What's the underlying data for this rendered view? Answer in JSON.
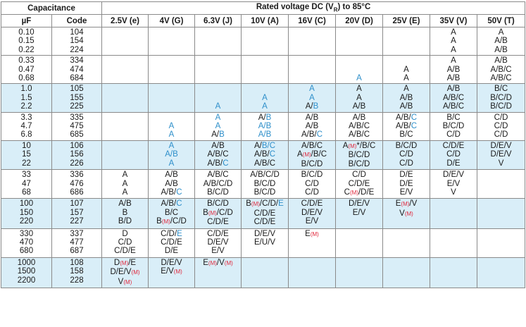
{
  "header": {
    "capacitance": "Capacitance",
    "rated_voltage": "Rated voltage DC (V",
    "rated_voltage_sub": "R",
    "rated_voltage_tail": ") to 85°C",
    "unit": "µF",
    "code": "Code",
    "voltages": [
      "2.5V (e)",
      "4V (G)",
      "6.3V (J)",
      "10V (A)",
      "16V (C)",
      "20V (D)",
      "25V (E)",
      "35V (V)",
      "50V (T)"
    ]
  },
  "colors": {
    "blue_text": "#2e8fca",
    "red_text": "#e0263a",
    "row_blue": "#d9eef8",
    "border": "#8a8a8a"
  },
  "groups": [
    {
      "shade": "white",
      "caps": [
        "0.10",
        "0.15",
        "0.22"
      ],
      "codes": [
        "104",
        "154",
        "224"
      ],
      "cells": [
        [],
        [],
        [],
        [],
        [],
        [],
        [],
        [
          [
            {
              "t": "A"
            }
          ],
          [
            {
              "t": "A"
            }
          ],
          [
            {
              "t": "A"
            }
          ]
        ],
        [
          [
            {
              "t": "A"
            }
          ],
          [
            {
              "t": "A/B"
            }
          ],
          [
            {
              "t": "A/B"
            }
          ]
        ]
      ]
    },
    {
      "shade": "white",
      "caps": [
        "0.33",
        "0.47",
        "0.68"
      ],
      "codes": [
        "334",
        "474",
        "684"
      ],
      "cells": [
        [],
        [],
        [],
        [],
        [],
        [
          [],
          [],
          [
            {
              "t": "A",
              "c": "b"
            }
          ]
        ],
        [
          [],
          [
            {
              "t": "A"
            }
          ],
          [
            {
              "t": "A"
            }
          ]
        ],
        [
          [
            {
              "t": "A"
            }
          ],
          [
            {
              "t": "A/B"
            }
          ],
          [
            {
              "t": "A/B"
            }
          ]
        ],
        [
          [
            {
              "t": "A/B"
            }
          ],
          [
            {
              "t": "A/B/C"
            }
          ],
          [
            {
              "t": "A/B/C"
            }
          ]
        ]
      ]
    },
    {
      "shade": "blue",
      "caps": [
        "1.0",
        "1.5",
        "2.2"
      ],
      "codes": [
        "105",
        "155",
        "225"
      ],
      "cells": [
        [],
        [],
        [
          [],
          [],
          [
            {
              "t": "A",
              "c": "b"
            }
          ]
        ],
        [
          [],
          [
            {
              "t": "A",
              "c": "b"
            }
          ],
          [
            {
              "t": "A",
              "c": "b"
            }
          ]
        ],
        [
          [
            {
              "t": "A",
              "c": "b"
            }
          ],
          [
            {
              "t": "A",
              "c": "b"
            }
          ],
          [
            {
              "t": "A/"
            },
            {
              "t": "B",
              "c": "b"
            }
          ]
        ],
        [
          [
            {
              "t": "A"
            }
          ],
          [
            {
              "t": "A"
            }
          ],
          [
            {
              "t": "A/B"
            }
          ]
        ],
        [
          [
            {
              "t": "A"
            }
          ],
          [
            {
              "t": "A/B"
            }
          ],
          [
            {
              "t": "A/B"
            }
          ]
        ],
        [
          [
            {
              "t": "A/B"
            }
          ],
          [
            {
              "t": "A/B/C"
            }
          ],
          [
            {
              "t": "A/B/C"
            }
          ]
        ],
        [
          [
            {
              "t": "B/C"
            }
          ],
          [
            {
              "t": "B/C/D"
            }
          ],
          [
            {
              "t": "B/C/D"
            }
          ]
        ]
      ]
    },
    {
      "shade": "white",
      "caps": [
        "3.3",
        "4.7",
        "6.8"
      ],
      "codes": [
        "335",
        "475",
        "685"
      ],
      "cells": [
        [],
        [
          [],
          [
            {
              "t": "A",
              "c": "b"
            }
          ],
          [
            {
              "t": "A",
              "c": "b"
            }
          ]
        ],
        [
          [
            {
              "t": "A",
              "c": "b"
            }
          ],
          [
            {
              "t": "A",
              "c": "b"
            }
          ],
          [
            {
              "t": "A/"
            },
            {
              "t": "B",
              "c": "b"
            }
          ]
        ],
        [
          [
            {
              "t": "A/"
            },
            {
              "t": "B",
              "c": "b"
            }
          ],
          [
            {
              "t": "A/B",
              "c": "b"
            }
          ],
          [
            {
              "t": "A/B",
              "c": "b"
            }
          ]
        ],
        [
          [
            {
              "t": "A/B"
            }
          ],
          [
            {
              "t": "A/B"
            }
          ],
          [
            {
              "t": "A/B/"
            },
            {
              "t": "C",
              "c": "b"
            }
          ]
        ],
        [
          [
            {
              "t": "A/B"
            }
          ],
          [
            {
              "t": "A/B/C"
            }
          ],
          [
            {
              "t": "A/B/C"
            }
          ]
        ],
        [
          [
            {
              "t": "A/B/"
            },
            {
              "t": "C",
              "c": "b"
            }
          ],
          [
            {
              "t": "A/B/"
            },
            {
              "t": "C",
              "c": "b"
            }
          ],
          [
            {
              "t": "B/C"
            }
          ]
        ],
        [
          [
            {
              "t": "B/C"
            }
          ],
          [
            {
              "t": "B/C/D"
            }
          ],
          [
            {
              "t": "C/D"
            }
          ]
        ],
        [
          [
            {
              "t": "C/D"
            }
          ],
          [
            {
              "t": "C/D"
            }
          ],
          [
            {
              "t": "C/D"
            }
          ]
        ]
      ]
    },
    {
      "shade": "blue",
      "caps": [
        "10",
        "15",
        "22"
      ],
      "codes": [
        "106",
        "156",
        "226"
      ],
      "cells": [
        [],
        [
          [
            {
              "t": "A",
              "c": "b"
            }
          ],
          [
            {
              "t": "A/B",
              "c": "b"
            }
          ],
          [
            {
              "t": "A",
              "c": "b"
            }
          ]
        ],
        [
          [
            {
              "t": "A/B"
            }
          ],
          [
            {
              "t": "A/B/C"
            }
          ],
          [
            {
              "t": "A/B/"
            },
            {
              "t": "C",
              "c": "b"
            }
          ]
        ],
        [
          [
            {
              "t": "A/"
            },
            {
              "t": "B/C",
              "c": "b"
            }
          ],
          [
            {
              "t": "A/B/"
            },
            {
              "t": "C",
              "c": "b"
            }
          ],
          [
            {
              "t": "A/B/C"
            }
          ]
        ],
        [
          [
            {
              "t": "A/B/C"
            }
          ],
          [
            {
              "t": "A"
            },
            {
              "t": "(M)",
              "c": "r"
            },
            {
              "t": "/B/C"
            }
          ],
          [
            {
              "t": "B/C/D"
            }
          ]
        ],
        [
          [
            {
              "t": "A"
            },
            {
              "t": "(M)",
              "c": "r"
            },
            {
              "t": "*/B/C"
            }
          ],
          [
            {
              "t": "B/C/D"
            }
          ],
          [
            {
              "t": "B/C/D"
            }
          ]
        ],
        [
          [
            {
              "t": "B/C/D"
            }
          ],
          [
            {
              "t": "C/D"
            }
          ],
          [
            {
              "t": "C/D"
            }
          ]
        ],
        [
          [
            {
              "t": "C/D/E"
            }
          ],
          [
            {
              "t": "C/D"
            }
          ],
          [
            {
              "t": "D/E"
            }
          ]
        ],
        [
          [
            {
              "t": "D/E/V"
            }
          ],
          [
            {
              "t": "D/E/V"
            }
          ],
          [
            {
              "t": "V"
            }
          ]
        ]
      ]
    },
    {
      "shade": "white",
      "caps": [
        "33",
        "47",
        "68"
      ],
      "codes": [
        "336",
        "476",
        "686"
      ],
      "cells": [
        [
          [
            {
              "t": "A"
            }
          ],
          [
            {
              "t": "A"
            }
          ],
          [
            {
              "t": "A"
            }
          ]
        ],
        [
          [
            {
              "t": "A/B"
            }
          ],
          [
            {
              "t": "A/B"
            }
          ],
          [
            {
              "t": "A/B/"
            },
            {
              "t": "C",
              "c": "b"
            }
          ]
        ],
        [
          [
            {
              "t": "A/B/C"
            }
          ],
          [
            {
              "t": "A/B/C/D"
            }
          ],
          [
            {
              "t": "B/C/D"
            }
          ]
        ],
        [
          [
            {
              "t": "A/B/C/D"
            }
          ],
          [
            {
              "t": "B/C/D"
            }
          ],
          [
            {
              "t": "B/C/D"
            }
          ]
        ],
        [
          [
            {
              "t": "B/C/D"
            }
          ],
          [
            {
              "t": "C/D"
            }
          ],
          [
            {
              "t": "C/D"
            }
          ]
        ],
        [
          [
            {
              "t": "C/D"
            }
          ],
          [
            {
              "t": "C/D/E"
            }
          ],
          [
            {
              "t": "C"
            },
            {
              "t": "(M)",
              "c": "r"
            },
            {
              "t": "/D/E"
            }
          ]
        ],
        [
          [
            {
              "t": "D/E"
            }
          ],
          [
            {
              "t": "D/E"
            }
          ],
          [
            {
              "t": "E/V"
            }
          ]
        ],
        [
          [
            {
              "t": "D/E/V"
            }
          ],
          [
            {
              "t": "E/V"
            }
          ],
          [
            {
              "t": "V"
            }
          ]
        ],
        []
      ]
    },
    {
      "shade": "blue",
      "caps": [
        "100",
        "150",
        "220"
      ],
      "codes": [
        "107",
        "157",
        "227"
      ],
      "cells": [
        [
          [
            {
              "t": "A/B"
            }
          ],
          [
            {
              "t": "B"
            }
          ],
          [
            {
              "t": "B/D"
            }
          ]
        ],
        [
          [
            {
              "t": "A/B/"
            },
            {
              "t": "C",
              "c": "b"
            }
          ],
          [
            {
              "t": "B/C"
            }
          ],
          [
            {
              "t": "B"
            },
            {
              "t": "(M)",
              "c": "r"
            },
            {
              "t": "/C/D"
            }
          ]
        ],
        [
          [
            {
              "t": "B/C/D"
            }
          ],
          [
            {
              "t": "B"
            },
            {
              "t": "(M)",
              "c": "r"
            },
            {
              "t": "/C/D"
            }
          ],
          [
            {
              "t": "C/D/E"
            }
          ]
        ],
        [
          [
            {
              "t": "B"
            },
            {
              "t": "(M)",
              "c": "r"
            },
            {
              "t": "/C/D/"
            },
            {
              "t": "E",
              "c": "b"
            }
          ],
          [
            {
              "t": "C/D/E"
            }
          ],
          [
            {
              "t": "C/D/E"
            }
          ]
        ],
        [
          [
            {
              "t": "C/D/E"
            }
          ],
          [
            {
              "t": "D/E/V"
            }
          ],
          [
            {
              "t": "E/V"
            }
          ]
        ],
        [
          [
            {
              "t": "D/E/V"
            }
          ],
          [
            {
              "t": "E/V"
            }
          ],
          []
        ],
        [
          [
            {
              "t": "E"
            },
            {
              "t": "(M)",
              "c": "r"
            },
            {
              "t": "/V"
            }
          ],
          [
            {
              "t": "V"
            },
            {
              "t": "(M)",
              "c": "r"
            }
          ],
          []
        ],
        [],
        []
      ]
    },
    {
      "shade": "white",
      "caps": [
        "330",
        "470",
        "680"
      ],
      "codes": [
        "337",
        "477",
        "687"
      ],
      "cells": [
        [
          [
            {
              "t": "D"
            }
          ],
          [
            {
              "t": "C/D"
            }
          ],
          [
            {
              "t": "C/D/E"
            }
          ]
        ],
        [
          [
            {
              "t": "C/D/"
            },
            {
              "t": "E",
              "c": "b"
            }
          ],
          [
            {
              "t": "C/D/E"
            }
          ],
          [
            {
              "t": "D/E"
            }
          ]
        ],
        [
          [
            {
              "t": "C/D/E"
            }
          ],
          [
            {
              "t": "D/E/V"
            }
          ],
          [
            {
              "t": "E/V"
            }
          ]
        ],
        [
          [
            {
              "t": "D/E/V"
            }
          ],
          [
            {
              "t": "E/U/V"
            }
          ],
          []
        ],
        [
          [
            {
              "t": "E"
            },
            {
              "t": "(M)",
              "c": "r"
            }
          ],
          [],
          []
        ],
        [],
        [],
        [],
        []
      ]
    },
    {
      "shade": "blue",
      "caps": [
        "1000",
        "1500",
        "2200"
      ],
      "codes": [
        "108",
        "158",
        "228"
      ],
      "cells": [
        [
          [
            {
              "t": "D"
            },
            {
              "t": "(M)",
              "c": "r"
            },
            {
              "t": "/E"
            }
          ],
          [
            {
              "t": "D/E/V"
            },
            {
              "t": "(M)",
              "c": "r"
            }
          ],
          [
            {
              "t": "V"
            },
            {
              "t": "(M)",
              "c": "r"
            }
          ]
        ],
        [
          [
            {
              "t": "D/E/V"
            }
          ],
          [
            {
              "t": "E/V"
            },
            {
              "t": "(M)",
              "c": "r"
            }
          ],
          []
        ],
        [
          [
            {
              "t": "E"
            },
            {
              "t": "(M)",
              "c": "r"
            },
            {
              "t": "/V"
            },
            {
              "t": "(M)",
              "c": "r"
            }
          ],
          [],
          []
        ],
        [],
        [],
        [],
        [],
        [],
        []
      ]
    }
  ]
}
